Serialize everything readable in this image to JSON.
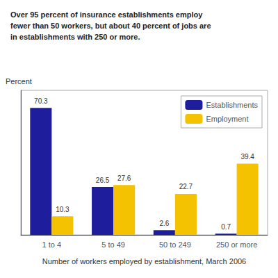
{
  "chart_data": {
    "type": "bar",
    "title": "Over 95 percent of insurance establishments employ\nfewer than 50 workers, but about 40 percent of jobs are\nin establishments with 250 or more.",
    "ylabel": "Percent",
    "xlabel": "Number of workers employed by establishment, March 2006",
    "categories": [
      "1 to 4",
      "5 to 49",
      "50 to 249",
      "250 or more"
    ],
    "series": [
      {
        "name": "Establishments",
        "color": "#1e1e9c",
        "values": [
          70.3,
          26.5,
          2.6,
          0.7
        ]
      },
      {
        "name": "Employment",
        "color": "#f5c200",
        "values": [
          10.3,
          27.6,
          22.7,
          39.4
        ]
      }
    ],
    "ylim": [
      0,
      80
    ],
    "data_labels": true,
    "tick_labels": "x",
    "grid": false,
    "legend": "upper right"
  }
}
